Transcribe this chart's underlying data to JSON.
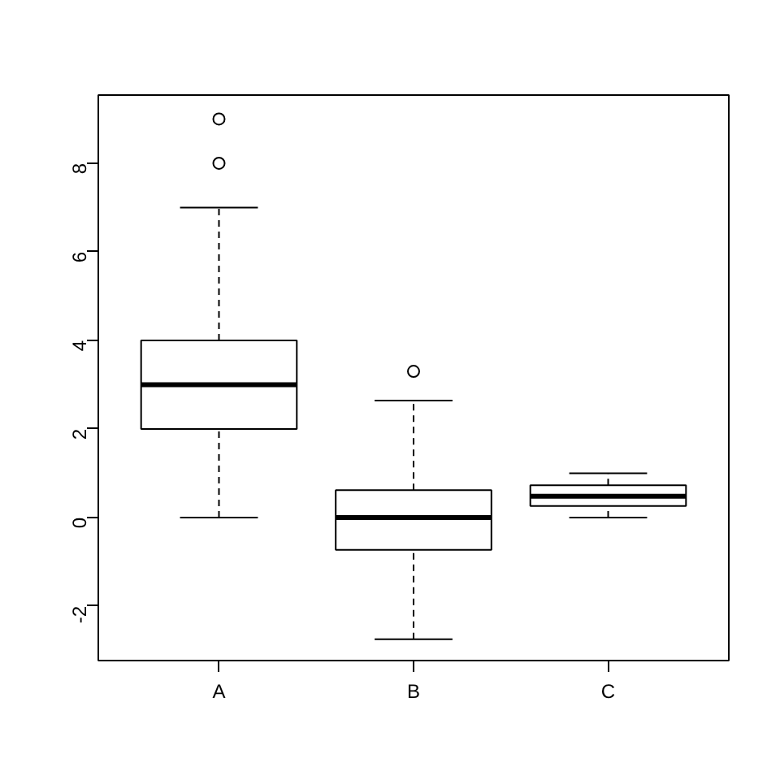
{
  "chart_data": {
    "type": "box",
    "categories": [
      "A",
      "B",
      "C"
    ],
    "boxes": [
      {
        "low": 0,
        "q1": 2,
        "median": 3,
        "q3": 4,
        "high": 7,
        "outliers": [
          8,
          9
        ]
      },
      {
        "low": -2.75,
        "q1": -0.73,
        "median": 0,
        "q3": 0.62,
        "high": 2.64,
        "outliers": [
          3.3
        ]
      },
      {
        "low": 0,
        "q1": 0.26,
        "median": 0.48,
        "q3": 0.73,
        "high": 1.0
      }
    ],
    "ylim": [
      -3.23,
      9.54
    ],
    "yticks": [
      -2,
      0,
      2,
      4,
      6,
      8
    ],
    "grid": false,
    "color": "#ffffff"
  }
}
